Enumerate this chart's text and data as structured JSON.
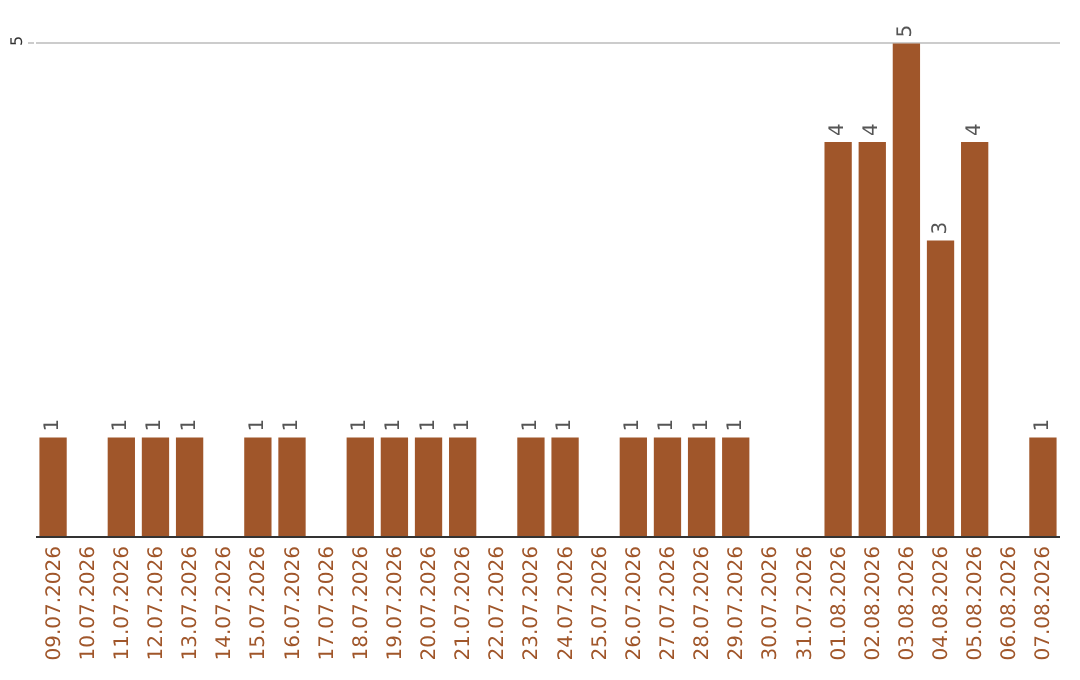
{
  "chart_data": {
    "type": "bar",
    "categories": [
      "09.07.2026",
      "10.07.2026",
      "11.07.2026",
      "12.07.2026",
      "13.07.2026",
      "14.07.2026",
      "15.07.2026",
      "16.07.2026",
      "17.07.2026",
      "18.07.2026",
      "19.07.2026",
      "20.07.2026",
      "21.07.2026",
      "22.07.2026",
      "23.07.2026",
      "24.07.2026",
      "25.07.2026",
      "26.07.2026",
      "27.07.2026",
      "28.07.2026",
      "29.07.2026",
      "30.07.2026",
      "31.07.2026",
      "01.08.2026",
      "02.08.2026",
      "03.08.2026",
      "04.08.2026",
      "05.08.2026",
      "06.08.2026",
      "07.08.2026"
    ],
    "values": [
      1,
      null,
      1,
      1,
      1,
      null,
      1,
      1,
      null,
      1,
      1,
      1,
      1,
      null,
      1,
      1,
      null,
      1,
      1,
      1,
      1,
      null,
      null,
      4,
      4,
      5,
      3,
      4,
      null,
      1
    ],
    "color": "#a0562a",
    "ylim": [
      0,
      5.4
    ],
    "yticks": [
      5
    ],
    "grid": "y",
    "data_labels": true,
    "legend": false
  }
}
